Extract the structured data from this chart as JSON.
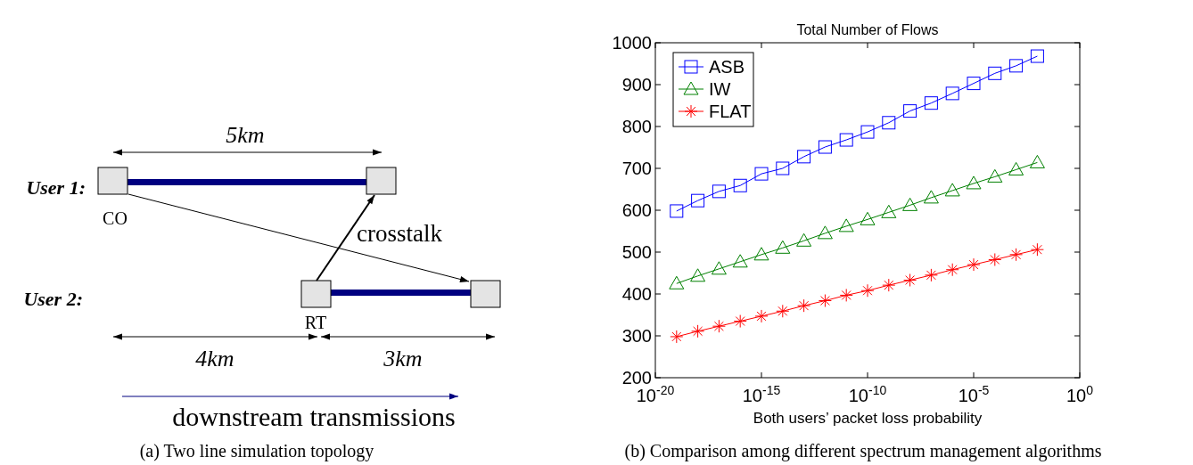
{
  "chart_data": [
    {
      "type": "other",
      "annotations": [
        "User 1:",
        "User 2:",
        "CO",
        "RT",
        "5km",
        "4km",
        "3km",
        "crosstalk",
        "downstream transmissions",
        "(a) Two line simulation topology"
      ]
    },
    {
      "type": "line",
      "title": "Total Number of Flows",
      "xlabel": "Both users’ packet loss probability",
      "log": "x",
      "x": [
        1e-19,
        1e-18,
        1e-17,
        1e-16,
        1e-15,
        1e-14,
        1e-13,
        1e-12,
        1e-11,
        1e-10,
        1e-09,
        1e-08,
        1e-07,
        1e-06,
        1e-05,
        0.0001,
        0.001,
        0.01
      ],
      "xlim": [
        1e-20,
        1
      ],
      "xticks": [
        {
          "value": 1e-20,
          "label": "10$^{-20}$"
        },
        {
          "value": 1e-15,
          "label": "10$^{-15}$"
        },
        {
          "value": 1e-10,
          "label": "10$^{-10}$"
        },
        {
          "value": 1e-05,
          "label": "10$^{-5}$"
        },
        {
          "value": 1,
          "label": "10$^{0}$"
        }
      ],
      "ylim": [
        200,
        1000
      ],
      "yticks": [
        200,
        300,
        400,
        500,
        600,
        700,
        800,
        900,
        1000
      ],
      "legend": "top left",
      "grid": false,
      "line_style": "solid",
      "series": [
        {
          "name": "ASB",
          "color": "#0000ff",
          "marker": "square",
          "values": [
            598,
            623,
            645,
            659,
            687,
            700,
            728,
            751,
            768,
            787,
            809,
            837,
            856,
            879,
            903,
            927,
            945,
            968
          ]
        },
        {
          "name": "IW",
          "color": "#008000",
          "marker": "triangle",
          "values": [
            425,
            443,
            460,
            477,
            494,
            510,
            527,
            545,
            562,
            578,
            595,
            612,
            630,
            647,
            664,
            680,
            697,
            714
          ]
        },
        {
          "name": "FLAT",
          "color": "#ff0000",
          "marker": "cross",
          "values": [
            298,
            311,
            323,
            335,
            347,
            359,
            372,
            384,
            397,
            408,
            421,
            433,
            445,
            458,
            470,
            482,
            494,
            506
          ]
        }
      ],
      "annotations": [
        "(b) Comparison among different spectrum management algorithms"
      ]
    }
  ]
}
